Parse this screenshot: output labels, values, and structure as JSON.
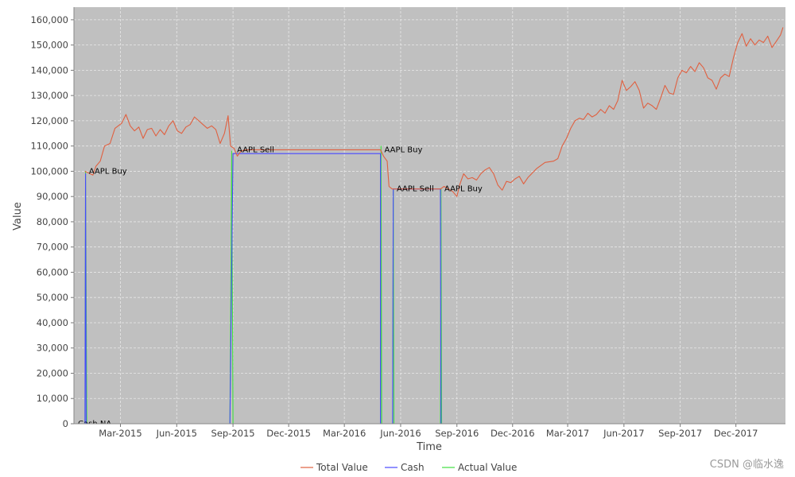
{
  "chart_data": {
    "type": "line",
    "xlabel": "Time",
    "ylabel": "Value",
    "ylim": [
      0,
      165000
    ],
    "xlim": [
      "2014-12-15",
      "2018-02-20"
    ],
    "y_ticks": [
      0,
      10000,
      20000,
      30000,
      40000,
      50000,
      60000,
      70000,
      80000,
      90000,
      100000,
      110000,
      120000,
      130000,
      140000,
      150000,
      160000
    ],
    "y_tick_labels": [
      "0",
      "10,000",
      "20,000",
      "30,000",
      "40,000",
      "50,000",
      "60,000",
      "70,000",
      "80,000",
      "90,000",
      "100,000",
      "110,000",
      "120,000",
      "130,000",
      "140,000",
      "150,000",
      "160,000"
    ],
    "x_ticks": [
      "2015-03-01",
      "2015-06-01",
      "2015-09-01",
      "2015-12-01",
      "2016-03-01",
      "2016-06-01",
      "2016-09-01",
      "2016-12-01",
      "2017-03-01",
      "2017-06-01",
      "2017-09-01",
      "2017-12-01"
    ],
    "x_tick_labels": [
      "Mar-2015",
      "Jun-2015",
      "Sep-2015",
      "Dec-2015",
      "Mar-2016",
      "Jun-2016",
      "Sep-2016",
      "Dec-2016",
      "Mar-2017",
      "Jun-2017",
      "Sep-2017",
      "Dec-2017"
    ],
    "grid": true,
    "legend_position": "bottom-center",
    "colors": {
      "plot_background": "#c0c0c0",
      "grid": "#e8e8e8",
      "total_value": "#e06040",
      "cash": "#4848ff",
      "actual_value": "#40e040"
    },
    "series": [
      {
        "name": "Total Value",
        "color": "#e06040",
        "points": [
          [
            "2015-01-02",
            100000
          ],
          [
            "2015-01-15",
            98500
          ],
          [
            "2015-01-20",
            102000
          ],
          [
            "2015-01-27",
            104000
          ],
          [
            "2015-02-03",
            110000
          ],
          [
            "2015-02-12",
            111000
          ],
          [
            "2015-02-20",
            117000
          ],
          [
            "2015-03-03",
            119000
          ],
          [
            "2015-03-10",
            122500
          ],
          [
            "2015-03-17",
            118000
          ],
          [
            "2015-03-24",
            116000
          ],
          [
            "2015-03-31",
            117500
          ],
          [
            "2015-04-07",
            113000
          ],
          [
            "2015-04-14",
            116500
          ],
          [
            "2015-04-21",
            117000
          ],
          [
            "2015-04-28",
            114000
          ],
          [
            "2015-05-05",
            116500
          ],
          [
            "2015-05-12",
            114500
          ],
          [
            "2015-05-19",
            118000
          ],
          [
            "2015-05-26",
            120000
          ],
          [
            "2015-06-02",
            116000
          ],
          [
            "2015-06-09",
            115000
          ],
          [
            "2015-06-16",
            117500
          ],
          [
            "2015-06-23",
            118500
          ],
          [
            "2015-06-30",
            121500
          ],
          [
            "2015-07-07",
            120000
          ],
          [
            "2015-07-14",
            118500
          ],
          [
            "2015-07-21",
            117000
          ],
          [
            "2015-07-28",
            118000
          ],
          [
            "2015-08-04",
            116500
          ],
          [
            "2015-08-11",
            111000
          ],
          [
            "2015-08-18",
            115000
          ],
          [
            "2015-08-24",
            122000
          ],
          [
            "2015-08-28",
            110000
          ],
          [
            "2015-09-03",
            109000
          ],
          [
            "2015-09-08",
            106000
          ],
          [
            "2015-09-14",
            108000
          ],
          [
            "2015-09-21",
            108500
          ],
          [
            "2016-04-01",
            108500
          ],
          [
            "2016-04-29",
            108500
          ],
          [
            "2016-05-04",
            106000
          ],
          [
            "2016-05-10",
            104000
          ],
          [
            "2016-05-13",
            94000
          ],
          [
            "2016-05-18",
            93000
          ],
          [
            "2016-08-05",
            93000
          ],
          [
            "2016-08-11",
            94000
          ],
          [
            "2016-08-18",
            93000
          ],
          [
            "2016-08-25",
            92000
          ],
          [
            "2016-09-01",
            90000
          ],
          [
            "2016-09-06",
            95000
          ],
          [
            "2016-09-12",
            99000
          ],
          [
            "2016-09-19",
            97000
          ],
          [
            "2016-09-26",
            97500
          ],
          [
            "2016-10-03",
            96500
          ],
          [
            "2016-10-10",
            99000
          ],
          [
            "2016-10-17",
            100500
          ],
          [
            "2016-10-24",
            101500
          ],
          [
            "2016-10-31",
            99000
          ],
          [
            "2016-11-07",
            94500
          ],
          [
            "2016-11-14",
            92500
          ],
          [
            "2016-11-21",
            96000
          ],
          [
            "2016-11-28",
            95500
          ],
          [
            "2016-12-05",
            97000
          ],
          [
            "2016-12-12",
            98000
          ],
          [
            "2016-12-19",
            95000
          ],
          [
            "2016-12-26",
            97500
          ],
          [
            "2017-01-09",
            101000
          ],
          [
            "2017-01-23",
            103500
          ],
          [
            "2017-02-06",
            104000
          ],
          [
            "2017-02-13",
            105000
          ],
          [
            "2017-02-20",
            110000
          ],
          [
            "2017-02-27",
            113000
          ],
          [
            "2017-03-06",
            117000
          ],
          [
            "2017-03-13",
            120000
          ],
          [
            "2017-03-20",
            121000
          ],
          [
            "2017-03-27",
            120500
          ],
          [
            "2017-04-03",
            123000
          ],
          [
            "2017-04-10",
            121500
          ],
          [
            "2017-04-17",
            122500
          ],
          [
            "2017-04-24",
            124500
          ],
          [
            "2017-05-01",
            123000
          ],
          [
            "2017-05-08",
            126000
          ],
          [
            "2017-05-15",
            124500
          ],
          [
            "2017-05-22",
            128000
          ],
          [
            "2017-05-29",
            136000
          ],
          [
            "2017-06-05",
            132000
          ],
          [
            "2017-06-12",
            133500
          ],
          [
            "2017-06-19",
            135500
          ],
          [
            "2017-06-26",
            132000
          ],
          [
            "2017-07-03",
            125000
          ],
          [
            "2017-07-10",
            127000
          ],
          [
            "2017-07-17",
            126000
          ],
          [
            "2017-07-24",
            124500
          ],
          [
            "2017-07-31",
            129000
          ],
          [
            "2017-08-07",
            134000
          ],
          [
            "2017-08-14",
            131000
          ],
          [
            "2017-08-21",
            130500
          ],
          [
            "2017-08-28",
            137000
          ],
          [
            "2017-09-04",
            140000
          ],
          [
            "2017-09-11",
            139000
          ],
          [
            "2017-09-18",
            141500
          ],
          [
            "2017-09-25",
            139500
          ],
          [
            "2017-10-02",
            143000
          ],
          [
            "2017-10-09",
            141000
          ],
          [
            "2017-10-16",
            137000
          ],
          [
            "2017-10-23",
            136000
          ],
          [
            "2017-10-30",
            132500
          ],
          [
            "2017-11-06",
            137000
          ],
          [
            "2017-11-13",
            138500
          ],
          [
            "2017-11-20",
            137500
          ],
          [
            "2017-11-27",
            145000
          ],
          [
            "2017-12-04",
            151000
          ],
          [
            "2017-12-11",
            154500
          ],
          [
            "2017-12-18",
            149500
          ],
          [
            "2017-12-25",
            152500
          ],
          [
            "2018-01-01",
            150000
          ],
          [
            "2018-01-08",
            152000
          ],
          [
            "2018-01-15",
            151000
          ],
          [
            "2018-01-22",
            153500
          ],
          [
            "2018-01-29",
            149000
          ],
          [
            "2018-02-05",
            151500
          ],
          [
            "2018-02-12",
            154000
          ],
          [
            "2018-02-16",
            157000
          ]
        ]
      },
      {
        "name": "Cash",
        "color": "#4848ff",
        "points": [
          [
            "2014-12-15",
            0
          ],
          [
            "2015-01-02",
            0
          ],
          [
            "2015-01-03",
            99000
          ],
          [
            "2015-01-04",
            0
          ],
          [
            "2015-08-27",
            0
          ],
          [
            "2015-09-01",
            107000
          ],
          [
            "2016-04-29",
            107000
          ],
          [
            "2016-04-29",
            0
          ],
          [
            "2016-05-19",
            0
          ],
          [
            "2016-05-20",
            93000
          ],
          [
            "2016-08-05",
            93000
          ],
          [
            "2016-08-06",
            0
          ],
          [
            "2018-02-16",
            0
          ]
        ]
      },
      {
        "name": "Actual Value",
        "color": "#40e040",
        "points": [
          [
            "2014-12-15",
            0
          ],
          [
            "2015-01-02",
            0
          ],
          [
            "2015-01-03",
            100000
          ],
          [
            "2015-01-05",
            0
          ],
          [
            "2015-08-27",
            0
          ],
          [
            "2015-08-30",
            108000
          ],
          [
            "2015-09-01",
            0
          ],
          [
            "2016-04-29",
            0
          ],
          [
            "2016-04-30",
            110000
          ],
          [
            "2016-05-01",
            0
          ],
          [
            "2016-05-19",
            0
          ],
          [
            "2016-05-20",
            93000
          ],
          [
            "2016-05-21",
            0
          ],
          [
            "2016-08-05",
            0
          ],
          [
            "2016-08-06",
            93000
          ],
          [
            "2016-08-07",
            0
          ],
          [
            "2018-02-16",
            0
          ]
        ]
      }
    ],
    "annotations": [
      {
        "text": "AAPL Buy",
        "x": "2015-01-02",
        "y": 100000
      },
      {
        "text": "AAPL Sell",
        "x": "2015-09-01",
        "y": 108500
      },
      {
        "text": "AAPL Buy",
        "x": "2016-04-29",
        "y": 108500
      },
      {
        "text": "AAPL Sell",
        "x": "2016-05-19",
        "y": 93000
      },
      {
        "text": "AAPL Buy",
        "x": "2016-08-05",
        "y": 93000
      },
      {
        "text": "Cash NA",
        "x": "2014-12-15",
        "y": 0
      }
    ],
    "legend": [
      "Total Value",
      "Cash",
      "Actual Value"
    ]
  },
  "watermark": "CSDN @临水逸"
}
